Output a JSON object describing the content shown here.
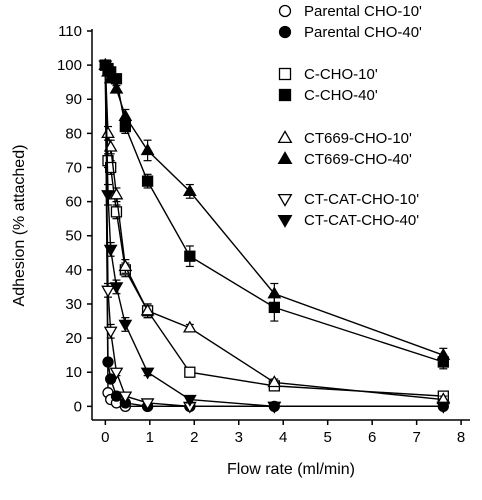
{
  "chart_data": {
    "type": "line",
    "xlabel": "Flow rate (ml/min)",
    "ylabel": "Adhesion (% attached)",
    "xlim": [
      -0.3,
      8.2
    ],
    "ylim": [
      -4,
      110
    ],
    "x_ticks": [
      0,
      1,
      2,
      3,
      4,
      5,
      6,
      7,
      8
    ],
    "y_ticks": [
      0,
      10,
      20,
      30,
      40,
      50,
      60,
      70,
      80,
      90,
      100,
      110
    ],
    "legend_position": "top-right",
    "series": [
      {
        "name": "Parental CHO-10'",
        "marker": "circle",
        "filled": false,
        "x": [
          0,
          0.06,
          0.12,
          0.25,
          0.45,
          0.95,
          1.9
        ],
        "y": [
          100,
          4,
          2,
          1,
          0,
          0,
          0
        ],
        "err": [
          0,
          1,
          1,
          0.5,
          0.5,
          0.3,
          0.3
        ]
      },
      {
        "name": "Parental CHO-40'",
        "marker": "circle",
        "filled": true,
        "x": [
          0,
          0.06,
          0.12,
          0.25,
          0.45,
          0.95,
          1.9,
          3.8,
          7.6
        ],
        "y": [
          100,
          13,
          8,
          3,
          1,
          0,
          0,
          0,
          0
        ],
        "err": [
          0,
          1,
          1,
          1,
          0.5,
          0.3,
          0.3,
          0.3,
          0.3
        ]
      },
      {
        "name": "C-CHO-10'",
        "marker": "square",
        "filled": false,
        "x": [
          0,
          0.06,
          0.12,
          0.25,
          0.45,
          0.95,
          1.9,
          3.8,
          7.6
        ],
        "y": [
          100,
          72,
          70,
          57,
          40,
          28,
          10,
          6,
          3
        ],
        "err": [
          0,
          2,
          2,
          2,
          2,
          2,
          1,
          1,
          1
        ]
      },
      {
        "name": "C-CHO-40'",
        "marker": "square",
        "filled": true,
        "x": [
          0,
          0.06,
          0.12,
          0.25,
          0.45,
          0.95,
          1.9,
          3.8,
          7.6
        ],
        "y": [
          100,
          99,
          98,
          96,
          82,
          66,
          44,
          29,
          13
        ],
        "err": [
          0,
          1,
          1,
          1,
          2,
          2,
          3,
          4,
          2
        ]
      },
      {
        "name": "CT669-CHO-10'",
        "marker": "triangle-up",
        "filled": false,
        "x": [
          0,
          0.06,
          0.12,
          0.25,
          0.45,
          0.95,
          1.9,
          3.8,
          7.6
        ],
        "y": [
          100,
          80,
          76,
          62,
          41,
          28,
          23,
          7,
          2
        ],
        "err": [
          0,
          2,
          2,
          2,
          2,
          2,
          1,
          1,
          1
        ]
      },
      {
        "name": "CT669-CHO-40'",
        "marker": "triangle-up",
        "filled": true,
        "x": [
          0,
          0.06,
          0.12,
          0.25,
          0.45,
          0.95,
          1.9,
          3.8,
          7.6
        ],
        "y": [
          100,
          98,
          96,
          93,
          85,
          75,
          63,
          33,
          15
        ],
        "err": [
          0,
          1,
          1,
          1,
          2,
          3,
          2,
          3,
          2
        ]
      },
      {
        "name": "CT-CAT-CHO-10'",
        "marker": "triangle-down",
        "filled": false,
        "x": [
          0,
          0.06,
          0.12,
          0.25,
          0.45,
          0.95,
          1.9,
          3.8,
          7.6
        ],
        "y": [
          100,
          34,
          22,
          10,
          3,
          1,
          0,
          0,
          0
        ],
        "err": [
          0,
          2,
          2,
          1,
          1,
          0.5,
          0.3,
          0.3,
          0.3
        ]
      },
      {
        "name": "CT-CAT-CHO-40'",
        "marker": "triangle-down",
        "filled": true,
        "x": [
          0,
          0.06,
          0.12,
          0.25,
          0.45,
          0.95,
          1.9,
          3.8,
          7.6
        ],
        "y": [
          100,
          62,
          46,
          35,
          24,
          10,
          2,
          0,
          0
        ],
        "err": [
          0,
          3,
          2,
          2,
          2,
          1,
          1,
          0.3,
          0.3
        ]
      }
    ]
  },
  "colors": {
    "ink": "#000000",
    "background": "#ffffff"
  }
}
